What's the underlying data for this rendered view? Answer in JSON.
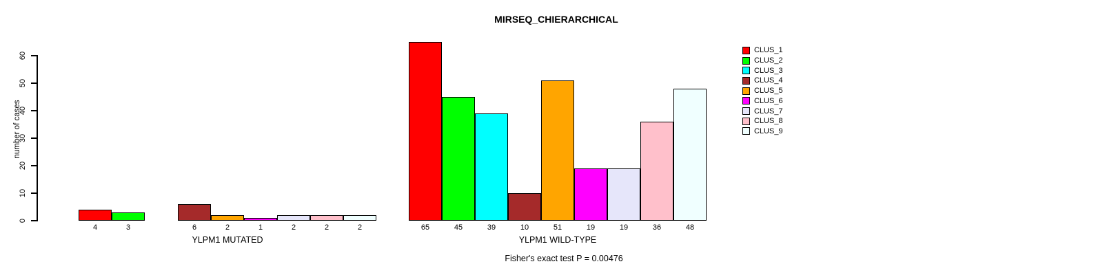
{
  "chart_data": {
    "type": "bar",
    "title": "MIRSEQ_CHIERARCHICAL",
    "ylabel": "number of cases",
    "xlabel": "",
    "ylim": [
      0,
      66
    ],
    "yticks": [
      0,
      10,
      20,
      30,
      40,
      50,
      60
    ],
    "grid": false,
    "legend_position": "right",
    "bar_value_labels_shown": true,
    "categories": [
      "CLUS_1",
      "CLUS_2",
      "CLUS_3",
      "CLUS_4",
      "CLUS_5",
      "CLUS_6",
      "CLUS_7",
      "CLUS_8",
      "CLUS_9"
    ],
    "colors": [
      "#FF0000",
      "#00FF00",
      "#00FFFF",
      "#A52A2A",
      "#FFA500",
      "#FF00FF",
      "#E6E6FA",
      "#FFC0CB",
      "#F0FFFF"
    ],
    "series": [
      {
        "name": "YLPM1 MUTATED",
        "values": [
          4,
          3,
          0,
          6,
          2,
          1,
          2,
          2,
          2
        ]
      },
      {
        "name": "YLPM1 WILD-TYPE",
        "values": [
          65,
          45,
          39,
          10,
          51,
          19,
          19,
          36,
          48
        ]
      }
    ],
    "annotation": "Fisher's exact test P = 0.00476",
    "axis_color": "#000000",
    "background_color": "#FFFFFF"
  }
}
